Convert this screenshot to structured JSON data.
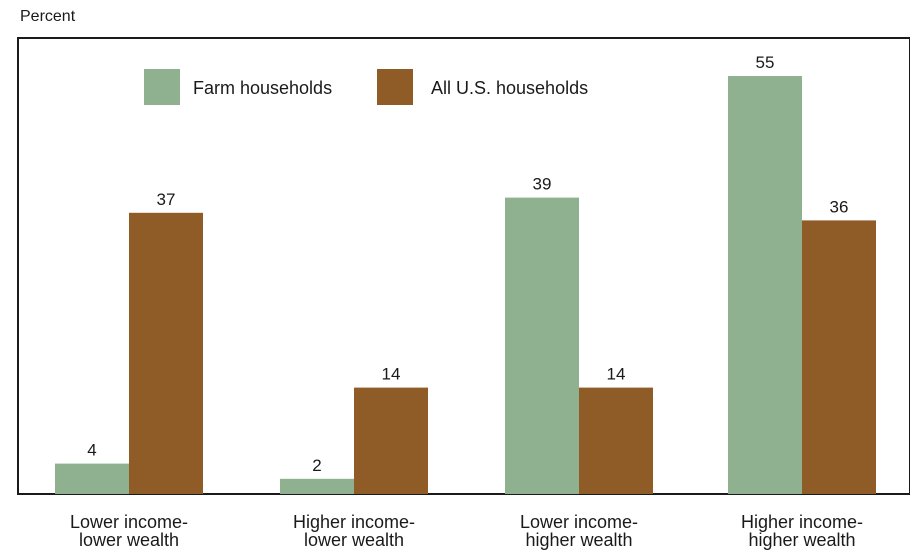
{
  "chart_data": {
    "type": "bar",
    "ylabel": "Percent",
    "categories": [
      [
        "Lower income-",
        "lower wealth"
      ],
      [
        "Higher income-",
        "lower wealth"
      ],
      [
        "Lower income-",
        "higher wealth"
      ],
      [
        "Higher income-",
        "higher wealth"
      ]
    ],
    "series": [
      {
        "name": "Farm households",
        "color": "#8fb18f",
        "values": [
          4,
          2,
          39,
          55
        ]
      },
      {
        "name": "All U.S. households",
        "color": "#8f5b26",
        "values": [
          37,
          14,
          14,
          36
        ]
      }
    ],
    "ylim": [
      0,
      60
    ],
    "grid": false,
    "legend_position": "top-left",
    "data_labels": true
  }
}
